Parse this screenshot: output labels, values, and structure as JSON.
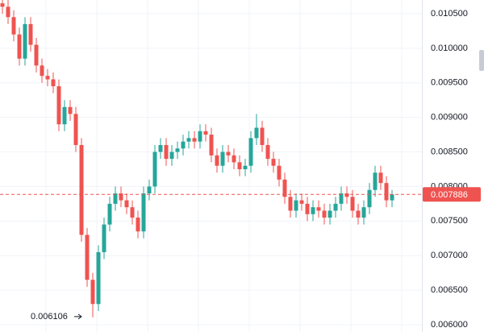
{
  "chart_data": {
    "type": "candlestick",
    "open": [
      0.01065,
      0.0106,
      0.01045,
      0.0102,
      0.00985,
      0.01035,
      0.01005,
      0.00975,
      0.0096,
      0.00955,
      0.00945,
      0.0089,
      0.00915,
      0.00905,
      0.0086,
      0.0073,
      0.00665,
      0.0063,
      0.00705,
      0.00745,
      0.00775,
      0.0079,
      0.0078,
      0.0077,
      0.00755,
      0.00735,
      0.0079,
      0.008,
      0.0085,
      0.0086,
      0.0084,
      0.0085,
      0.00855,
      0.00865,
      0.0087,
      0.00865,
      0.0088,
      0.00875,
      0.00845,
      0.0083,
      0.0085,
      0.00845,
      0.00835,
      0.00825,
      0.0083,
      0.0087,
      0.00885,
      0.0086,
      0.0084,
      0.0083,
      0.0081,
      0.00785,
      0.00765,
      0.0078,
      0.00775,
      0.0076,
      0.0077,
      0.00765,
      0.00755,
      0.00765,
      0.00775,
      0.0079,
      0.00785,
      0.00765,
      0.00755,
      0.0077,
      0.00795,
      0.0082,
      0.00805,
      0.0078
    ],
    "high": [
      0.0107,
      0.0107,
      0.01055,
      0.0103,
      0.01045,
      0.01045,
      0.01015,
      0.00985,
      0.0097,
      0.00965,
      0.00955,
      0.00925,
      0.00925,
      0.00915,
      0.0087,
      0.0074,
      0.00675,
      0.00715,
      0.00755,
      0.00785,
      0.008,
      0.008,
      0.0079,
      0.0078,
      0.00765,
      0.008,
      0.0081,
      0.0086,
      0.0087,
      0.0087,
      0.0086,
      0.00865,
      0.00875,
      0.0088,
      0.0088,
      0.0089,
      0.0089,
      0.00885,
      0.00855,
      0.0086,
      0.0086,
      0.00855,
      0.00845,
      0.0084,
      0.0088,
      0.00905,
      0.00895,
      0.0087,
      0.0085,
      0.0084,
      0.0082,
      0.00795,
      0.0079,
      0.0079,
      0.00785,
      0.0078,
      0.0078,
      0.00775,
      0.00775,
      0.00785,
      0.008,
      0.008,
      0.00795,
      0.00775,
      0.0078,
      0.00805,
      0.0083,
      0.0083,
      0.00815,
      0.00795
    ],
    "low": [
      0.0105,
      0.01035,
      0.0101,
      0.00975,
      0.00975,
      0.00995,
      0.00965,
      0.0095,
      0.00945,
      0.00935,
      0.0088,
      0.0088,
      0.00895,
      0.0085,
      0.0072,
      0.00655,
      0.006106,
      0.0062,
      0.00695,
      0.00735,
      0.00765,
      0.0077,
      0.0076,
      0.00745,
      0.00725,
      0.00725,
      0.0078,
      0.0079,
      0.0084,
      0.0083,
      0.0083,
      0.0084,
      0.00845,
      0.00855,
      0.00855,
      0.00855,
      0.00865,
      0.00835,
      0.0082,
      0.0082,
      0.00835,
      0.00825,
      0.00815,
      0.00815,
      0.0082,
      0.0086,
      0.0085,
      0.0083,
      0.0082,
      0.008,
      0.00775,
      0.00755,
      0.00755,
      0.00765,
      0.0075,
      0.0075,
      0.00755,
      0.00745,
      0.00745,
      0.00755,
      0.00765,
      0.00775,
      0.00755,
      0.00745,
      0.00745,
      0.0076,
      0.00785,
      0.00795,
      0.0077,
      0.0077
    ],
    "close": [
      0.0106,
      0.01045,
      0.0102,
      0.00985,
      0.01035,
      0.01005,
      0.00975,
      0.0096,
      0.00955,
      0.00945,
      0.0089,
      0.00915,
      0.00905,
      0.0086,
      0.0073,
      0.00665,
      0.0063,
      0.00705,
      0.00745,
      0.00775,
      0.0079,
      0.0078,
      0.0077,
      0.00755,
      0.00735,
      0.0079,
      0.008,
      0.0085,
      0.0086,
      0.0084,
      0.0085,
      0.00855,
      0.00865,
      0.0087,
      0.00865,
      0.0088,
      0.00875,
      0.00845,
      0.0083,
      0.0085,
      0.00845,
      0.00835,
      0.00825,
      0.0083,
      0.0087,
      0.00885,
      0.0086,
      0.0084,
      0.0083,
      0.0081,
      0.00785,
      0.00765,
      0.0078,
      0.00775,
      0.0076,
      0.0077,
      0.00765,
      0.00755,
      0.00765,
      0.00775,
      0.0079,
      0.00785,
      0.00765,
      0.00755,
      0.0077,
      0.00795,
      0.0082,
      0.00805,
      0.0078,
      0.007886
    ],
    "up_color": "#26a69a",
    "down_color": "#ef5350",
    "ylim": [
      0.005895,
      0.010698
    ],
    "yticks": [
      {
        "value": 0.006,
        "label": "0.006000"
      },
      {
        "value": 0.0065,
        "label": "0.006500"
      },
      {
        "value": 0.007,
        "label": "0.007000"
      },
      {
        "value": 0.0075,
        "label": "0.007500"
      },
      {
        "value": 0.008,
        "label": "0.008000"
      },
      {
        "value": 0.0085,
        "label": "0.008500"
      },
      {
        "value": 0.009,
        "label": "0.009000"
      },
      {
        "value": 0.0095,
        "label": "0.009500"
      },
      {
        "value": 0.01,
        "label": "0.010000"
      },
      {
        "value": 0.0105,
        "label": "0.010500"
      }
    ],
    "grid": true,
    "current_price": {
      "value": 0.007886,
      "label": "0.007886",
      "color": "#ef5350"
    },
    "low_marker": {
      "value": 0.006106,
      "label": "0.006106"
    }
  }
}
